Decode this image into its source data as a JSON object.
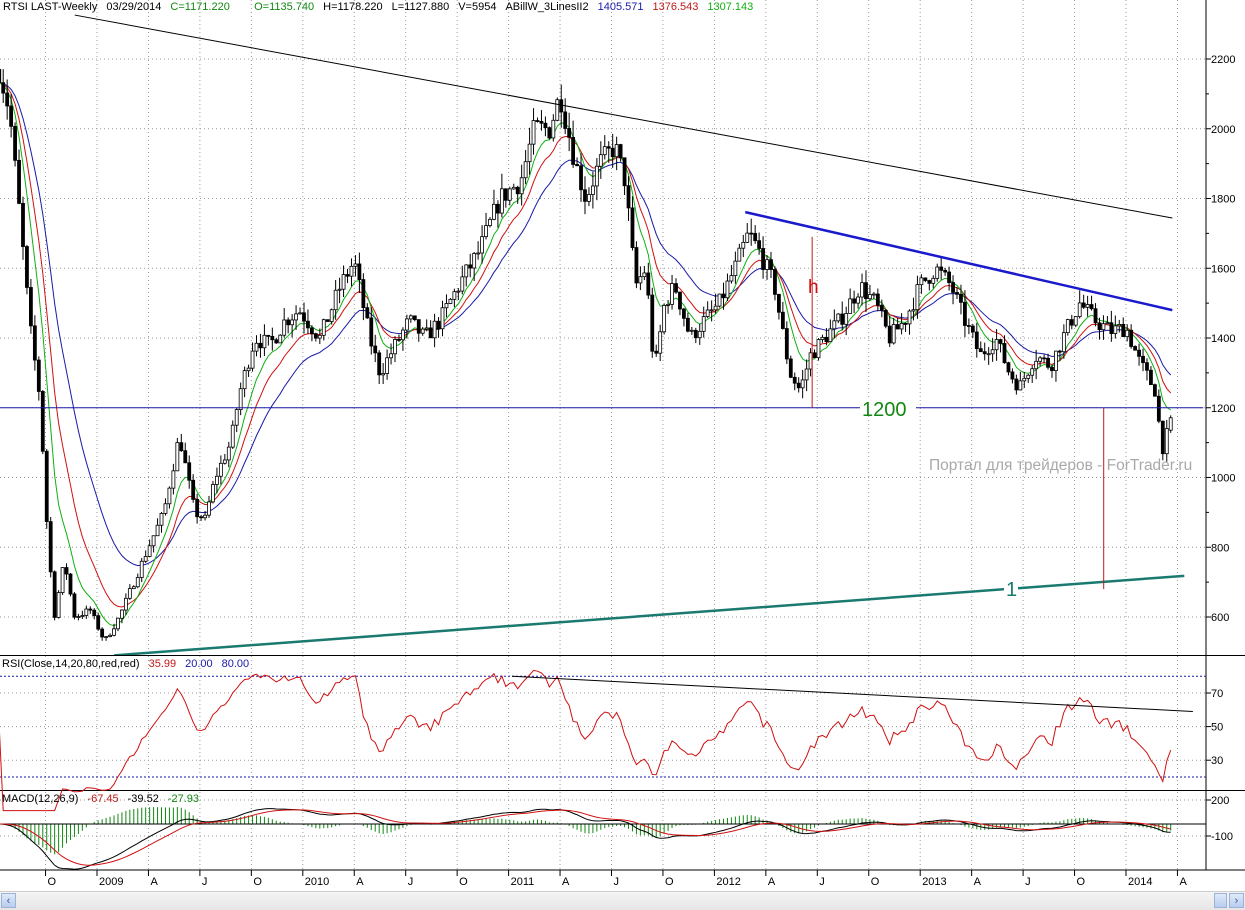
{
  "header": {
    "symbol": "RTSI LAST-Weekly",
    "date": "03/29/2014",
    "close": "C=1171.220",
    "open": "O=1135.740",
    "high": "H=1178.220",
    "low": "L=1127.880",
    "volume": "V=5954",
    "indicator": "ABillW_3LinesII2",
    "ma_blue": "1405.571",
    "ma_red": "1376.543",
    "ma_green": "1307.143"
  },
  "rsi_header": {
    "label": "RSI(Close,14,20,80,red,red)",
    "value": "35.99",
    "low": "20.00",
    "high": "80.00"
  },
  "macd_header": {
    "label": "MACD(12,26,9)",
    "macd": "-67.45",
    "signal": "-39.52",
    "hist": "-27.93"
  },
  "watermark": "Портал для трейдеров - ForTrader.ru",
  "annotations": {
    "level_label": "1200",
    "h_label": "h",
    "one_label": "1"
  },
  "colors": {
    "blue_ma": "#1a1aa8",
    "red_ma": "#d01010",
    "green_ma": "#10b010",
    "trend_blue": "#1a1acc",
    "teal": "#1a7a70",
    "level_green": "#118811",
    "rsi": "#d01010"
  },
  "chart_data": {
    "type": "candlestick",
    "title": "RTSI LAST-Weekly",
    "x_unit": "months since Jan 2009",
    "price_ticks": [
      "2200",
      "2000",
      "1800",
      "1600",
      "1400",
      "1200",
      "1000",
      "800",
      "600"
    ],
    "rsi_ticks": [
      "70",
      "50",
      "30"
    ],
    "macd_ticks": [
      "200",
      "-100"
    ],
    "time_ticks": [
      {
        "m": -3,
        "label": "O"
      },
      {
        "m": 0,
        "label": "2009"
      },
      {
        "m": 3,
        "label": "A"
      },
      {
        "m": 6,
        "label": "J"
      },
      {
        "m": 9,
        "label": "O"
      },
      {
        "m": 12,
        "label": "2010"
      },
      {
        "m": 15,
        "label": "A"
      },
      {
        "m": 18,
        "label": "J"
      },
      {
        "m": 21,
        "label": "O"
      },
      {
        "m": 24,
        "label": "2011"
      },
      {
        "m": 27,
        "label": "A"
      },
      {
        "m": 30,
        "label": "J"
      },
      {
        "m": 33,
        "label": "O"
      },
      {
        "m": 36,
        "label": "2012"
      },
      {
        "m": 39,
        "label": "A"
      },
      {
        "m": 42,
        "label": "J"
      },
      {
        "m": 45,
        "label": "O"
      },
      {
        "m": 48,
        "label": "2013"
      },
      {
        "m": 51,
        "label": "A"
      },
      {
        "m": 54,
        "label": "J"
      },
      {
        "m": 57,
        "label": "O"
      },
      {
        "m": 60,
        "label": "2014"
      },
      {
        "m": 63,
        "label": "A"
      }
    ],
    "close_anchors": [
      [
        -5.7,
        2170
      ],
      [
        -5.1,
        2050
      ],
      [
        -4.5,
        1750
      ],
      [
        -3.9,
        1430
      ],
      [
        -3.3,
        1220
      ],
      [
        -3.0,
        920
      ],
      [
        -2.5,
        600
      ],
      [
        -1.9,
        760
      ],
      [
        -1.3,
        600
      ],
      [
        -0.4,
        620
      ],
      [
        0.45,
        530
      ],
      [
        1.3,
        600
      ],
      [
        2.2,
        705
      ],
      [
        3.0,
        800
      ],
      [
        3.9,
        900
      ],
      [
        4.8,
        1120
      ],
      [
        5.7,
        900
      ],
      [
        6.3,
        880
      ],
      [
        6.9,
        1000
      ],
      [
        7.8,
        1100
      ],
      [
        8.3,
        1240
      ],
      [
        9.2,
        1400
      ],
      [
        10.1,
        1380
      ],
      [
        10.96,
        1450
      ],
      [
        11.8,
        1480
      ],
      [
        13.0,
        1400
      ],
      [
        14.2,
        1550
      ],
      [
        15.0,
        1620
      ],
      [
        15.9,
        1400
      ],
      [
        16.5,
        1300
      ],
      [
        17.4,
        1380
      ],
      [
        18.2,
        1450
      ],
      [
        19.1,
        1400
      ],
      [
        20.0,
        1450
      ],
      [
        21.2,
        1560
      ],
      [
        22.3,
        1650
      ],
      [
        23.5,
        1800
      ],
      [
        24.7,
        1850
      ],
      [
        25.5,
        2000
      ],
      [
        26.4,
        2000
      ],
      [
        27.0,
        2100
      ],
      [
        27.9,
        1900
      ],
      [
        28.5,
        1800
      ],
      [
        29.3,
        1900
      ],
      [
        30.2,
        1950
      ],
      [
        30.8,
        1850
      ],
      [
        31.4,
        1550
      ],
      [
        32.0,
        1600
      ],
      [
        32.5,
        1300
      ],
      [
        33.1,
        1500
      ],
      [
        33.7,
        1550
      ],
      [
        34.6,
        1400
      ],
      [
        35.4,
        1450
      ],
      [
        36.3,
        1500
      ],
      [
        37.2,
        1600
      ],
      [
        38.0,
        1700
      ],
      [
        38.6,
        1650
      ],
      [
        39.5,
        1550
      ],
      [
        40.4,
        1300
      ],
      [
        41.0,
        1250
      ],
      [
        41.6,
        1350
      ],
      [
        42.4,
        1400
      ],
      [
        43.3,
        1450
      ],
      [
        44.5,
        1550
      ],
      [
        45.4,
        1500
      ],
      [
        46.2,
        1400
      ],
      [
        47.1,
        1450
      ],
      [
        48.0,
        1550
      ],
      [
        48.9,
        1600
      ],
      [
        49.8,
        1550
      ],
      [
        50.6,
        1450
      ],
      [
        51.5,
        1350
      ],
      [
        52.4,
        1400
      ],
      [
        53.2,
        1300
      ],
      [
        53.8,
        1260
      ],
      [
        54.7,
        1350
      ],
      [
        55.6,
        1320
      ],
      [
        56.5,
        1420
      ],
      [
        57.3,
        1500
      ],
      [
        58.2,
        1450
      ],
      [
        59.1,
        1420
      ],
      [
        60.0,
        1430
      ],
      [
        60.8,
        1330
      ],
      [
        61.7,
        1250
      ],
      [
        62.1,
        1080
      ],
      [
        62.7,
        1171
      ]
    ],
    "trendlines": [
      {
        "name": "long-resistance",
        "from": [
          -1.3,
          2326
        ],
        "to": [
          62.7,
          1744
        ],
        "color": "#000000"
      },
      {
        "name": "blue-resistance",
        "from": [
          37.8,
          1761
        ],
        "to": [
          62.7,
          1480
        ],
        "color": "#1a1acc"
      },
      {
        "name": "teal-support",
        "from": [
          1.0,
          490
        ],
        "to": [
          63.4,
          718
        ],
        "color": "#1a7a70"
      },
      {
        "name": "level-1200",
        "from": [
          -5.7,
          1200
        ],
        "to": [
          64.5,
          1200
        ],
        "color": "#1a1aa8"
      }
    ],
    "measure_lines": [
      {
        "label": "h",
        "m": 41.7,
        "from": 1690,
        "to": 1200
      },
      {
        "m": 58.7,
        "from": 1200,
        "to": 680
      }
    ],
    "rsi_levels": [
      20,
      80
    ],
    "rsi_trendline": {
      "from": [
        24.2,
        80
      ],
      "to": [
        63.9,
        59
      ]
    }
  }
}
